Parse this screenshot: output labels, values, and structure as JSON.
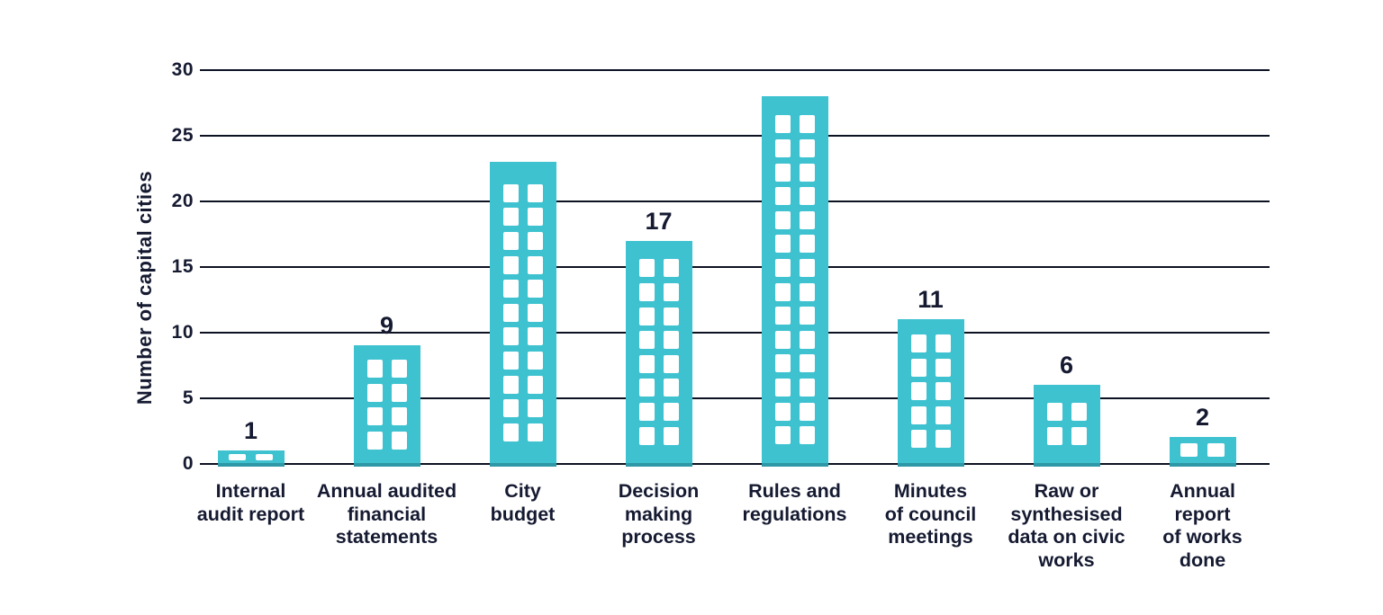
{
  "chart_data": {
    "type": "bar",
    "title": "",
    "xlabel": "",
    "ylabel": "Number of capital cities",
    "ylim": [
      0,
      30
    ],
    "yticks": [
      0,
      5,
      10,
      15,
      20,
      25,
      30
    ],
    "grid": true,
    "legend": "none",
    "bar_color": "#3ec2d0",
    "bar_base_color": "#2e98a6",
    "text_color": "#151a31",
    "gridline_color": "#0d1222",
    "background_color": "#ffffff",
    "bar_style": "building-with-white-windows",
    "categories": [
      "Internal audit report",
      "Annual audited financial statements",
      "City budget",
      "Decision making process",
      "Rules and regulations",
      "Minutes of council meetings",
      "Raw or synthesised data on civic works",
      "Annual report of works done"
    ],
    "values": [
      1,
      9,
      23,
      17,
      28,
      11,
      6,
      2
    ],
    "value_labels_shown": [
      true,
      true,
      false,
      true,
      false,
      true,
      true,
      true
    ]
  },
  "bars": [
    {
      "value": 1,
      "display_value": "1",
      "label_lines": [
        "Internal",
        "audit report"
      ]
    },
    {
      "value": 9,
      "display_value": "9",
      "label_lines": [
        "Annual audited",
        "financial",
        "statements"
      ]
    },
    {
      "value": 23,
      "display_value": "",
      "label_lines": [
        "City",
        "budget"
      ]
    },
    {
      "value": 17,
      "display_value": "17",
      "label_lines": [
        "Decision",
        "making",
        "process"
      ]
    },
    {
      "value": 28,
      "display_value": "",
      "label_lines": [
        "Rules and",
        "regulations"
      ]
    },
    {
      "value": 11,
      "display_value": "11",
      "label_lines": [
        "Minutes",
        "of council",
        "meetings"
      ]
    },
    {
      "value": 6,
      "display_value": "6",
      "label_lines": [
        "Raw or",
        "synthesised",
        "data on civic",
        "works"
      ]
    },
    {
      "value": 2,
      "display_value": "2",
      "label_lines": [
        "Annual",
        "report",
        "of works",
        "done"
      ]
    }
  ]
}
